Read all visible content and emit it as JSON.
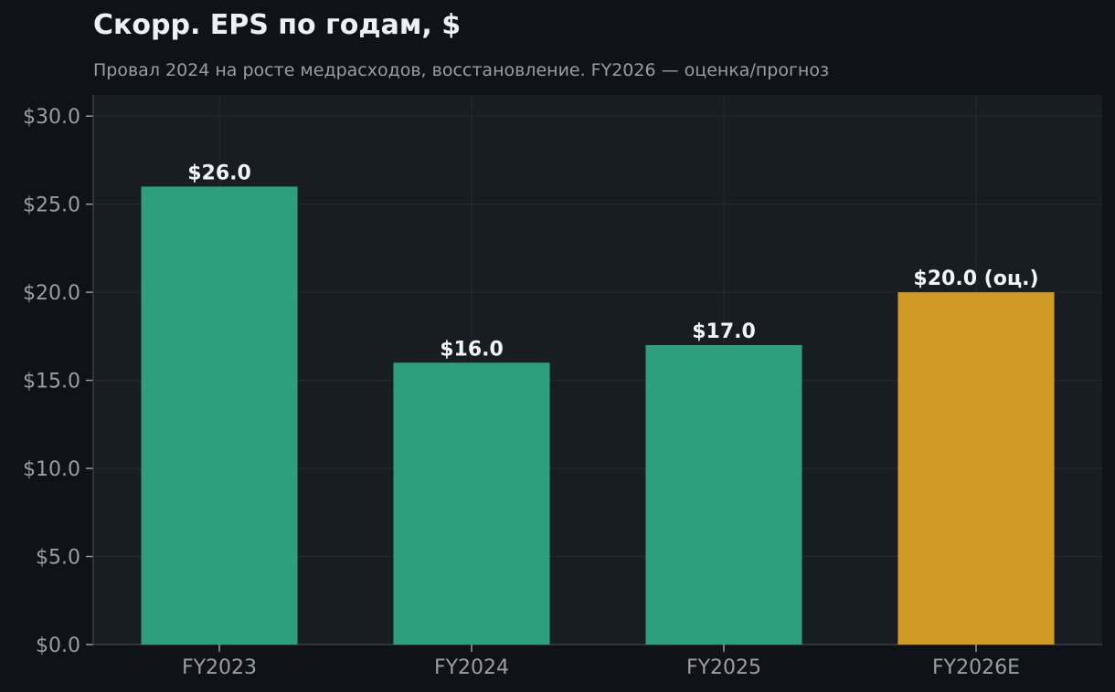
{
  "chart_data": {
    "type": "bar",
    "title": "Скорр. EPS по годам, $",
    "subtitle": "Провал 2024 на росте медрасходов, восстановление. FY2026 — оценка/прогноз",
    "xlabel": "",
    "ylabel": "",
    "categories": [
      "FY2023",
      "FY2024",
      "FY2025",
      "FY2026E"
    ],
    "values": [
      26.0,
      16.0,
      17.0,
      20.0
    ],
    "data_labels": [
      "$26.0",
      "$16.0",
      "$17.0",
      "$20.0 (оц.)"
    ],
    "bar_colors": [
      "#2e9f7c",
      "#2e9f7c",
      "#2e9f7c",
      "#d19a24"
    ],
    "ylim": [
      0,
      31.2
    ],
    "y_ticks": [
      0,
      5,
      10,
      15,
      20,
      25,
      30
    ],
    "y_tick_labels": [
      "$0.0",
      "$5.0",
      "$10.0",
      "$15.0",
      "$20.0",
      "$25.0",
      "$30.0"
    ],
    "grid": true,
    "legend": "none"
  },
  "colors": {
    "background": "#0f1317",
    "plot_background": "#181c23",
    "grid": "#262b33",
    "axis": "#3a4048",
    "text_muted": "#979ea6",
    "text_bright": "#f2f4f6"
  }
}
